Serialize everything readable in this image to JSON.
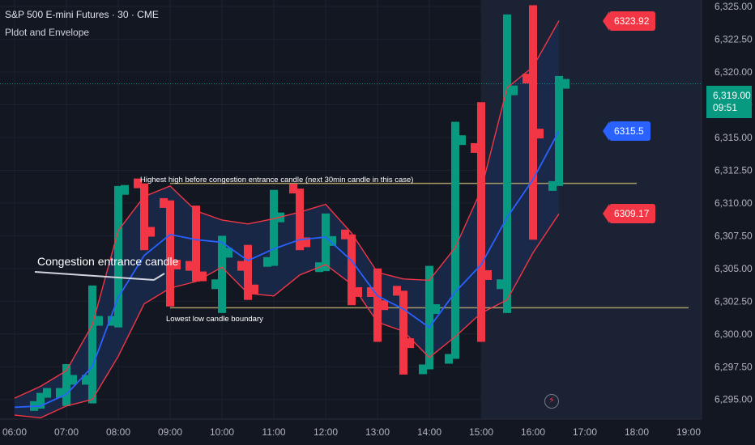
{
  "header": {
    "title": "S&P 500 E-mini Futures · 30 · CME",
    "indicator": "Pldot and Envelope"
  },
  "colors": {
    "background": "#131722",
    "session_bg": "#1a2234",
    "envelope_fill": "#1b2a4d",
    "up": "#089981",
    "down": "#f23645",
    "pldot": "#2962ff",
    "envelope_line": "#f23645",
    "level_line": "#a79b66",
    "annotation_line": "#d1d4dc"
  },
  "price_tags": [
    {
      "name": "envelope-upper-tag",
      "label": "6323.92",
      "value": 6323.92,
      "color": "#f23645"
    },
    {
      "name": "pldot-tag",
      "label": "6315.5",
      "value": 6315.5,
      "color": "#2962ff"
    },
    {
      "name": "envelope-lower-tag",
      "label": "6309.17",
      "value": 6309.17,
      "color": "#f23645"
    }
  ],
  "last_price": {
    "value": "6,319.00",
    "countdown": "09:51"
  },
  "chart_data": {
    "type": "candlestick",
    "title": "S&P 500 E-mini Futures · 30 · CME",
    "x_ticks": [
      "06:00",
      "07:00",
      "08:00",
      "09:00",
      "10:00",
      "11:00",
      "12:00",
      "13:00",
      "14:00",
      "15:00",
      "16:00",
      "17:00",
      "18:00",
      "19:00"
    ],
    "y_ticks": [
      "6,295.00",
      "6,297.50",
      "6,300.00",
      "6,302.50",
      "6,305.00",
      "6,307.50",
      "6,310.00",
      "6,312.50",
      "6,315.00",
      "6,317.50",
      "6,320.00",
      "6,322.50",
      "6,325.00"
    ],
    "ylim": [
      6293.5,
      6325.5
    ],
    "bars": [
      {
        "t": "06:30",
        "open": 6294.5,
        "high": 6295.5,
        "low": 6294.3,
        "close": 6295.5
      },
      {
        "t": "07:00",
        "open": 6295.5,
        "high": 6297.7,
        "low": 6294.5,
        "close": 6296.5
      },
      {
        "t": "07:30",
        "open": 6296.5,
        "high": 6303.7,
        "low": 6294.7,
        "close": 6301.0
      },
      {
        "t": "08:00",
        "open": 6301.0,
        "high": 6311.3,
        "low": 6300.5,
        "close": 6311.0
      },
      {
        "t": "08:30",
        "open": 6311.5,
        "high": 6311.5,
        "low": 6306.4,
        "close": 6307.8
      },
      {
        "t": "09:00",
        "open": 6310.0,
        "high": 6310.2,
        "low": 6302.1,
        "close": 6305.3
      },
      {
        "t": "09:30",
        "open": 6305.2,
        "high": 6309.8,
        "low": 6304.0,
        "close": 6304.4
      },
      {
        "t": "10:00",
        "open": 6303.8,
        "high": 6307.5,
        "low": 6301.6,
        "close": 6306.2
      },
      {
        "t": "10:30",
        "open": 6305.2,
        "high": 6306.8,
        "low": 6302.6,
        "close": 6303.4
      },
      {
        "t": "11:00",
        "open": 6305.5,
        "high": 6311.0,
        "low": 6305.2,
        "close": 6308.9
      },
      {
        "t": "11:30",
        "open": 6311.1,
        "high": 6311.1,
        "low": 6306.4,
        "close": 6307.0
      },
      {
        "t": "12:00",
        "open": 6305.1,
        "high": 6309.2,
        "low": 6304.8,
        "close": 6307.1
      },
      {
        "t": "12:30",
        "open": 6307.6,
        "high": 6307.6,
        "low": 6302.2,
        "close": 6303.2
      },
      {
        "t": "13:00",
        "open": 6303.2,
        "high": 6305.0,
        "low": 6299.4,
        "close": 6302.2
      },
      {
        "t": "13:30",
        "open": 6303.3,
        "high": 6303.3,
        "low": 6296.9,
        "close": 6299.3
      },
      {
        "t": "14:00",
        "open": 6297.3,
        "high": 6305.2,
        "low": 6297.3,
        "close": 6301.9
      },
      {
        "t": "14:30",
        "open": 6298.1,
        "high": 6316.2,
        "low": 6298.1,
        "close": 6314.8
      },
      {
        "t": "15:00",
        "open": 6314.2,
        "high": 6317.7,
        "low": 6299.4,
        "close": 6304.5
      },
      {
        "t": "15:30",
        "open": 6303.8,
        "high": 6324.4,
        "low": 6301.6,
        "close": 6318.6
      },
      {
        "t": "16:00",
        "open": 6319.5,
        "high": 6325.1,
        "low": 6307.2,
        "close": 6315.3
      },
      {
        "t": "16:30",
        "open": 6311.3,
        "high": 6319.7,
        "low": 6311.3,
        "close": 6319.1
      }
    ],
    "pldot": [
      6294.4,
      6294.5,
      6295.4,
      6297.5,
      6302.8,
      6306.0,
      6307.6,
      6307.2,
      6307.0,
      6305.6,
      6306.5,
      6307.2,
      6307.4,
      6305.6,
      6302.9,
      6301.9,
      6300.5,
      6303.2,
      6305.3,
      6308.9,
      6311.8,
      6315.5
    ],
    "envelope_upper": [
      6295.1,
      6296.0,
      6297.2,
      6300.7,
      6307.9,
      6310.5,
      6311.3,
      6309.4,
      6308.7,
      6308.4,
      6308.8,
      6309.3,
      6309.9,
      6307.7,
      6304.7,
      6304.2,
      6304.1,
      6306.6,
      6311.0,
      6318.8,
      6320.4,
      6323.92
    ],
    "envelope_lower": [
      6293.8,
      6293.6,
      6294.5,
      6295.0,
      6298.3,
      6302.3,
      6303.5,
      6304.0,
      6305.1,
      6303.1,
      6302.9,
      6304.5,
      6305.3,
      6303.8,
      6300.9,
      6300.2,
      6298.2,
      6299.8,
      6301.6,
      6302.6,
      6306.2,
      6309.17
    ],
    "envelope_index_start": 1,
    "session_shade_from": "15:00",
    "levels": [
      {
        "name": "congestion-high-level",
        "value": 6311.5,
        "from": "09:00",
        "to": "18:00",
        "label": "Highest high before congestion entrance candle (next 30min candle in this case)"
      },
      {
        "name": "congestion-low-level",
        "value": 6302.0,
        "from": "09:00",
        "to": "19:00",
        "label": "Lowest low candle boundary"
      }
    ],
    "annotations": [
      {
        "name": "congestion-entrance-label",
        "text": "Congestion entrance candle"
      }
    ]
  }
}
